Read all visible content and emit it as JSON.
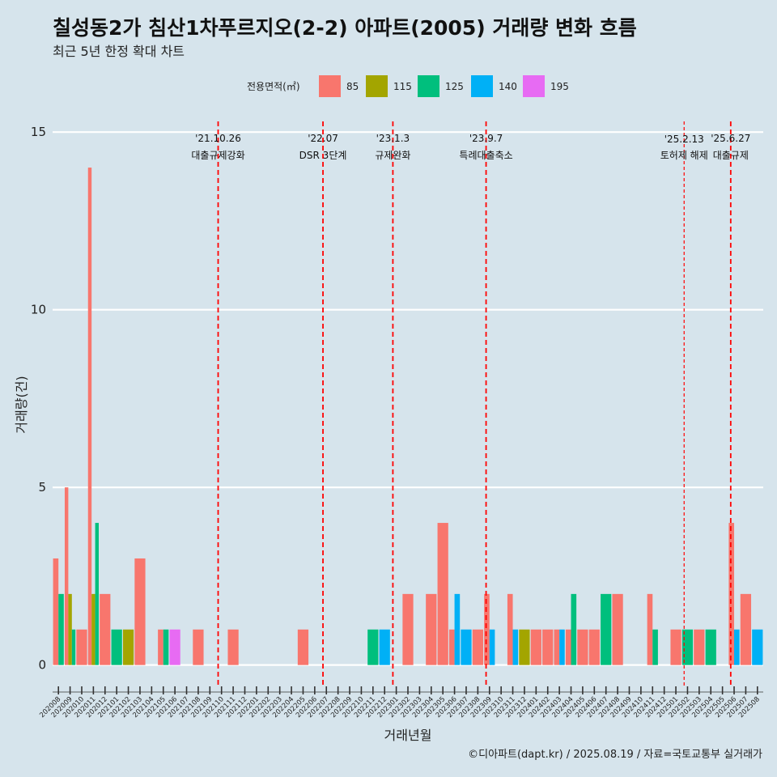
{
  "chart_data": {
    "type": "bar",
    "title": "칠성동2가 침산1차푸르지오(2-2) 아파트(2005) 거래량 변화 흐름",
    "subtitle": "최근 5년 한정 확대 차트",
    "xlabel": "거래년월",
    "ylabel": "거래량(건)",
    "ylim": [
      -0.6,
      15.3
    ],
    "yticks": [
      0,
      5,
      10,
      15
    ],
    "legend": {
      "title": "전용면적(㎡)",
      "position": "top",
      "entries": [
        {
          "name": "85",
          "color": "#f8766d"
        },
        {
          "name": "115",
          "color": "#a3a500"
        },
        {
          "name": "125",
          "color": "#00bf7d"
        },
        {
          "name": "140",
          "color": "#00b0f6"
        },
        {
          "name": "195",
          "color": "#e76bf3"
        }
      ]
    },
    "categories": [
      "202008",
      "202009",
      "202010",
      "202011",
      "202012",
      "202101",
      "202102",
      "202103",
      "202104",
      "202105",
      "202106",
      "202107",
      "202108",
      "202109",
      "202110",
      "202111",
      "202112",
      "202201",
      "202202",
      "202203",
      "202204",
      "202205",
      "202206",
      "202207",
      "202208",
      "202209",
      "202210",
      "202211",
      "202212",
      "202301",
      "202302",
      "202303",
      "202304",
      "202305",
      "202306",
      "202307",
      "202308",
      "202309",
      "202310",
      "202311",
      "202312",
      "202401",
      "202402",
      "202403",
      "202404",
      "202405",
      "202406",
      "202407",
      "202408",
      "202409",
      "202410",
      "202411",
      "202412",
      "202501",
      "202502",
      "202503",
      "202504",
      "202505",
      "202506",
      "202507",
      "202508"
    ],
    "series": [
      {
        "name": "85",
        "values": [
          3,
          5,
          1,
          14,
          2,
          0,
          0,
          3,
          0,
          1,
          0,
          0,
          1,
          0,
          0,
          1,
          0,
          0,
          0,
          0,
          0,
          1,
          0,
          0,
          0,
          0,
          0,
          0,
          0,
          0,
          2,
          0,
          2,
          4,
          1,
          0,
          1,
          2,
          0,
          2,
          0,
          1,
          1,
          1,
          1,
          1,
          1,
          0,
          2,
          0,
          0,
          2,
          0,
          1,
          0,
          1,
          0,
          0,
          4,
          2,
          0
        ]
      },
      {
        "name": "115",
        "values": [
          0,
          2,
          0,
          2,
          0,
          0,
          1,
          0,
          0,
          0,
          0,
          0,
          0,
          0,
          0,
          0,
          0,
          0,
          0,
          0,
          0,
          0,
          0,
          0,
          0,
          0,
          0,
          0,
          0,
          0,
          0,
          0,
          0,
          0,
          0,
          0,
          0,
          0,
          0,
          0,
          1,
          0,
          0,
          0,
          0,
          0,
          0,
          0,
          0,
          0,
          0,
          0,
          0,
          0,
          0,
          0,
          0,
          0,
          0,
          0,
          0
        ]
      },
      {
        "name": "125",
        "values": [
          2,
          1,
          0,
          4,
          0,
          1,
          0,
          0,
          0,
          1,
          0,
          0,
          0,
          0,
          0,
          0,
          0,
          0,
          0,
          0,
          0,
          0,
          0,
          0,
          0,
          0,
          0,
          1,
          0,
          0,
          0,
          0,
          0,
          0,
          0,
          0,
          0,
          0,
          0,
          0,
          0,
          0,
          0,
          0,
          2,
          0,
          0,
          2,
          0,
          0,
          0,
          1,
          0,
          0,
          1,
          0,
          1,
          0,
          0,
          0,
          0
        ]
      },
      {
        "name": "140",
        "values": [
          0,
          0,
          0,
          0,
          0,
          0,
          0,
          0,
          0,
          0,
          0,
          0,
          0,
          0,
          0,
          0,
          0,
          0,
          0,
          0,
          0,
          0,
          0,
          0,
          0,
          0,
          0,
          0,
          1,
          0,
          0,
          0,
          0,
          0,
          2,
          1,
          0,
          1,
          0,
          1,
          0,
          0,
          0,
          1,
          0,
          0,
          0,
          0,
          0,
          0,
          0,
          0,
          0,
          0,
          0,
          0,
          0,
          0,
          1,
          0,
          1
        ]
      },
      {
        "name": "195",
        "values": [
          0,
          0,
          0,
          0,
          0,
          0,
          0,
          0,
          0,
          0,
          1,
          0,
          0,
          0,
          0,
          0,
          0,
          0,
          0,
          0,
          0,
          0,
          0,
          0,
          0,
          0,
          0,
          0,
          0,
          0,
          0,
          0,
          0,
          0,
          0,
          0,
          0,
          0,
          0,
          0,
          0,
          0,
          0,
          0,
          0,
          0,
          0,
          0,
          0,
          0,
          0,
          0,
          0,
          0,
          0,
          0,
          0,
          0,
          0,
          0,
          0
        ]
      }
    ],
    "events": [
      {
        "x": "202110",
        "date": "'21.10.26",
        "label": "대출규제강화"
      },
      {
        "x": "202207",
        "date": "'22.07",
        "label": "DSR 3단계"
      },
      {
        "x": "202301",
        "date": "'23.1.3",
        "label": "규제완화"
      },
      {
        "x": "202309",
        "date": "'23.9.7",
        "label": "특례대출축소"
      },
      {
        "x": "202502",
        "date": "'25.2.13",
        "label": "토허제 해제"
      },
      {
        "x": "202506",
        "date": "'25.6.27",
        "label": "대출규제"
      }
    ],
    "event_line_color": "#ff0000",
    "grid": "horizontal",
    "caption": "©디아파트(dapt.kr) / 2025.08.19 / 자료=국토교통부 실거래가"
  }
}
